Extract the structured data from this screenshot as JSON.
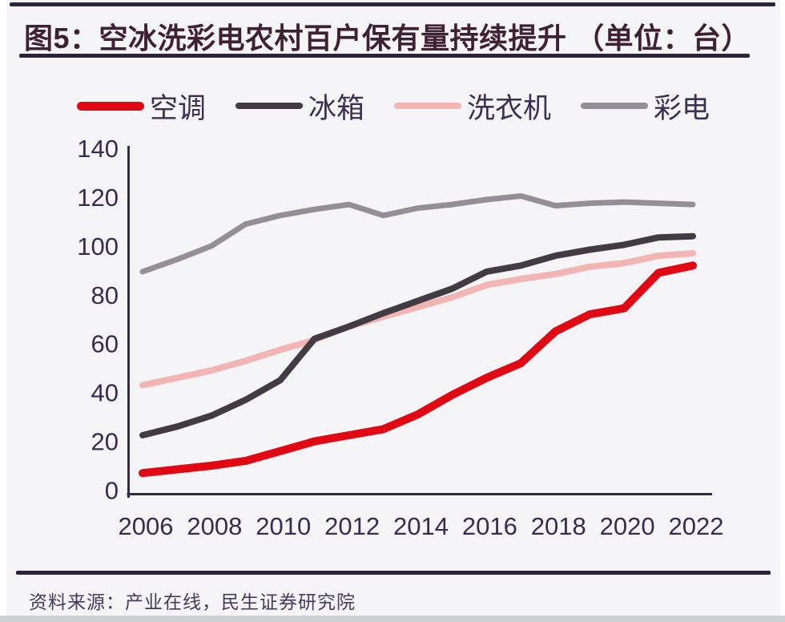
{
  "header": {
    "title": "图5：空冰洗彩电农村百户保有量持续提升 （单位：台）"
  },
  "source": {
    "text": "资料来源：产业在线，民生证券研究院"
  },
  "colors": {
    "background": "#f5f4f7",
    "rule": "#2c2438",
    "title_text": "#3e2133",
    "axis": "#332c43",
    "tick_text": "#372c4e",
    "legend_text": "#3a3052",
    "air_conditioner": "#e10813",
    "fridge": "#433b44",
    "washer": "#f3b5b3",
    "tv": "#948f97"
  },
  "chart_data": {
    "type": "line",
    "title": "空冰洗彩电农村百户保有量",
    "unit": "台",
    "x": [
      2006,
      2007,
      2008,
      2009,
      2010,
      2011,
      2012,
      2013,
      2014,
      2015,
      2016,
      2017,
      2018,
      2019,
      2020,
      2021,
      2022
    ],
    "x_tick_labels": [
      "2006",
      "2008",
      "2010",
      "2012",
      "2014",
      "2016",
      "2018",
      "2020",
      "2022"
    ],
    "y_ticks": [
      0,
      20,
      40,
      60,
      80,
      100,
      120,
      140
    ],
    "ylim": [
      0,
      140
    ],
    "xlabel": "",
    "ylabel": "",
    "grid": false,
    "legend_position": "top",
    "series": [
      {
        "name": "彩电",
        "color": "#948f97",
        "line_width": 7,
        "values": [
          89.5,
          94.5,
          100,
          109,
          112.5,
          115,
          117,
          112.5,
          115.5,
          117,
          119,
          120.5,
          116.5,
          117.5,
          118,
          117.5,
          117
        ]
      },
      {
        "name": "洗衣机",
        "color": "#f3b5b3",
        "line_width": 8,
        "values": [
          43,
          46,
          49,
          53,
          57.5,
          61.5,
          67,
          71,
          75,
          79,
          84,
          86.5,
          88.5,
          91.5,
          93,
          96,
          97
        ]
      },
      {
        "name": "冰箱",
        "color": "#433b44",
        "line_width": 8,
        "values": [
          22.5,
          26,
          30.5,
          37,
          45,
          62,
          67,
          72.5,
          77.5,
          82.5,
          89.5,
          92,
          96,
          98.5,
          100.5,
          103.5,
          104
        ]
      },
      {
        "name": "空调",
        "color": "#e10813",
        "line_width": 10,
        "values": [
          7,
          8.5,
          10,
          12,
          16,
          20,
          22.5,
          25,
          31,
          39,
          46,
          52,
          65,
          72,
          74.5,
          89,
          92
        ]
      }
    ],
    "legend_order": [
      "空调",
      "冰箱",
      "洗衣机",
      "彩电"
    ]
  }
}
